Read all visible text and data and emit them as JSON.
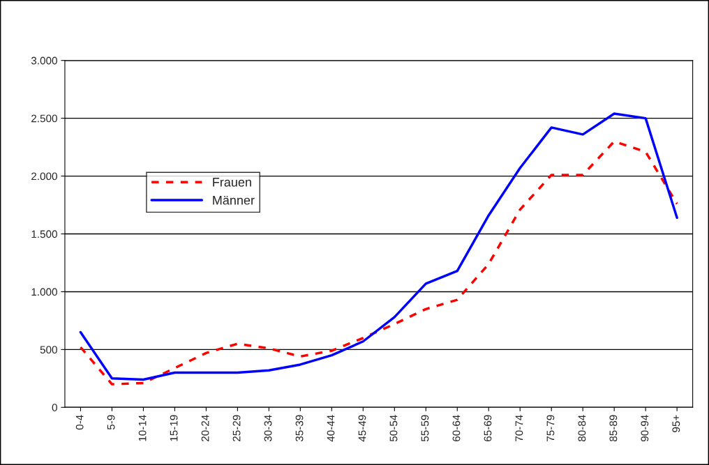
{
  "chart_data": {
    "type": "line",
    "categories": [
      "0-4",
      "5-9",
      "10-14",
      "15-19",
      "20-24",
      "25-29",
      "30-34",
      "35-39",
      "40-44",
      "45-49",
      "50-54",
      "55-59",
      "60-64",
      "65-69",
      "70-74",
      "75-79",
      "80-84",
      "85-89",
      "90-94",
      "95+"
    ],
    "series": [
      {
        "name": "Frauen",
        "color": "#ff0000",
        "line_style": "dashed",
        "values": [
          520,
          200,
          210,
          340,
          470,
          550,
          510,
          440,
          490,
          600,
          720,
          850,
          930,
          1240,
          1710,
          2010,
          2010,
          2300,
          2210,
          1760
        ]
      },
      {
        "name": "Männer",
        "color": "#0000ff",
        "line_style": "solid",
        "values": [
          650,
          250,
          240,
          300,
          300,
          300,
          320,
          370,
          450,
          570,
          780,
          1070,
          1180,
          1660,
          2070,
          2420,
          2360,
          2540,
          2500,
          1640
        ]
      }
    ],
    "ylim": [
      0,
      3000
    ],
    "yticks": [
      {
        "value": 0,
        "label": "0"
      },
      {
        "value": 500,
        "label": "500"
      },
      {
        "value": 1000,
        "label": "1.000"
      },
      {
        "value": 1500,
        "label": "1.500"
      },
      {
        "value": 2000,
        "label": "2.000"
      },
      {
        "value": 2500,
        "label": "2.500"
      },
      {
        "value": 3000,
        "label": "3.000"
      }
    ],
    "grid": "y",
    "legend": "left",
    "marker": "none"
  }
}
